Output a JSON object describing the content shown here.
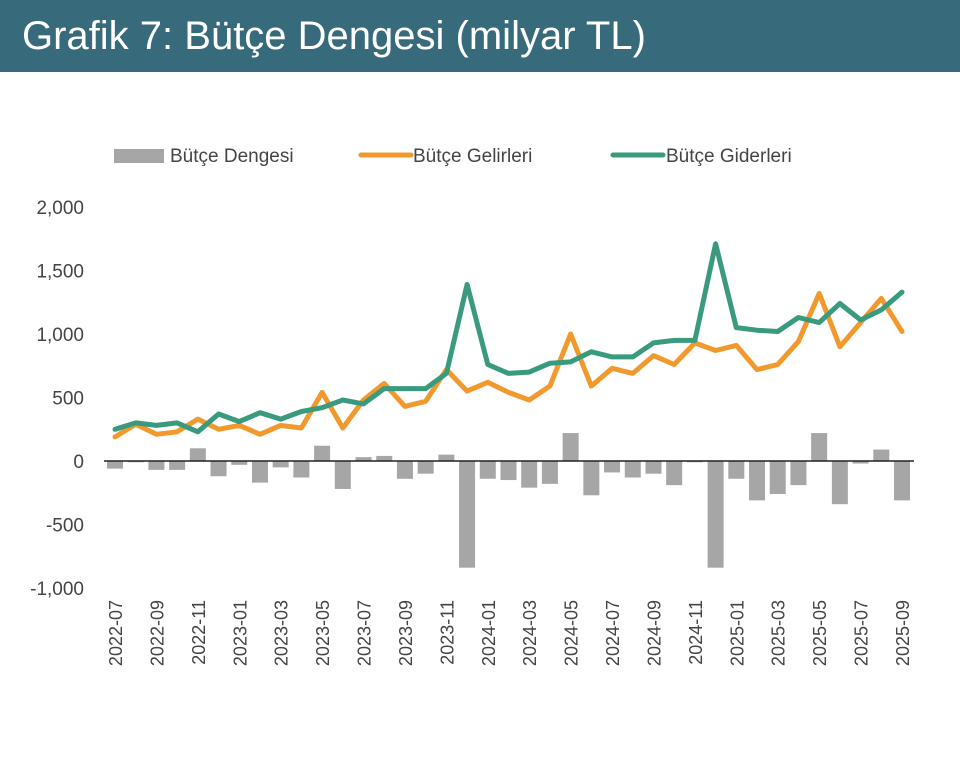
{
  "header": {
    "title": "Grafik 7: Bütçe Dengesi (milyar TL)"
  },
  "colors": {
    "title_bg": "#376a7b",
    "balance": "#a6a6a6",
    "revenue": "#f2992e",
    "expenditure": "#3a9a7e"
  },
  "chart_data": {
    "type": "bar+line",
    "title": "Grafik 7: Bütçe Dengesi (milyar TL)",
    "xlabel": "",
    "ylabel": "",
    "ylim": [
      -1000,
      2000
    ],
    "yticks": [
      2000,
      1500,
      1000,
      500,
      0,
      -500,
      -1000
    ],
    "ytick_labels": [
      "2,000",
      "1,500",
      "1,000",
      "500",
      "0",
      "-500",
      "-1,000"
    ],
    "legend_position": "top",
    "grid": false,
    "x": [
      "2022-07",
      "2022-08",
      "2022-09",
      "2022-10",
      "2022-11",
      "2022-12",
      "2023-01",
      "2023-02",
      "2023-03",
      "2023-04",
      "2023-05",
      "2023-06",
      "2023-07",
      "2023-08",
      "2023-09",
      "2023-10",
      "2023-11",
      "2023-12",
      "2024-01",
      "2024-02",
      "2024-03",
      "2024-04",
      "2024-05",
      "2024-06",
      "2024-07",
      "2024-08",
      "2024-09",
      "2024-10",
      "2024-11",
      "2024-12",
      "2025-01",
      "2025-02",
      "2025-03",
      "2025-04",
      "2025-05",
      "2025-06",
      "2025-07",
      "2025-08",
      "2025-09"
    ],
    "xtick_labels": [
      "2022-07",
      "2022-09",
      "2022-11",
      "2023-01",
      "2023-03",
      "2023-05",
      "2023-07",
      "2023-09",
      "2023-11",
      "2024-01",
      "2024-03",
      "2024-05",
      "2024-07",
      "2024-09",
      "2024-11",
      "2025-01",
      "2025-03",
      "2025-05",
      "2025-07",
      "2025-09"
    ],
    "series": [
      {
        "name": "Bütçe Dengesi",
        "kind": "bar",
        "values": [
          -60,
          -10,
          -70,
          -70,
          100,
          -120,
          -30,
          -170,
          -50,
          -130,
          120,
          -220,
          30,
          40,
          -140,
          -100,
          50,
          -840,
          -140,
          -150,
          -210,
          -180,
          220,
          -270,
          -90,
          -130,
          -100,
          -190,
          -10,
          -840,
          -140,
          -310,
          -260,
          -190,
          220,
          -340,
          -20,
          90,
          -310
        ]
      },
      {
        "name": "Bütçe Gelirleri",
        "kind": "line",
        "values": [
          190,
          290,
          210,
          230,
          330,
          250,
          280,
          210,
          280,
          260,
          540,
          260,
          480,
          610,
          430,
          470,
          720,
          550,
          620,
          540,
          480,
          590,
          1000,
          590,
          730,
          690,
          830,
          760,
          930,
          870,
          910,
          720,
          760,
          940,
          1320,
          900,
          1090,
          1280,
          1020
        ]
      },
      {
        "name": "Bütçe Giderleri",
        "kind": "line",
        "values": [
          250,
          300,
          280,
          300,
          230,
          370,
          310,
          380,
          330,
          390,
          420,
          480,
          450,
          570,
          570,
          570,
          690,
          1390,
          760,
          690,
          700,
          770,
          780,
          860,
          820,
          820,
          930,
          950,
          950,
          1710,
          1050,
          1030,
          1020,
          1130,
          1090,
          1240,
          1110,
          1190,
          1330
        ]
      }
    ]
  }
}
